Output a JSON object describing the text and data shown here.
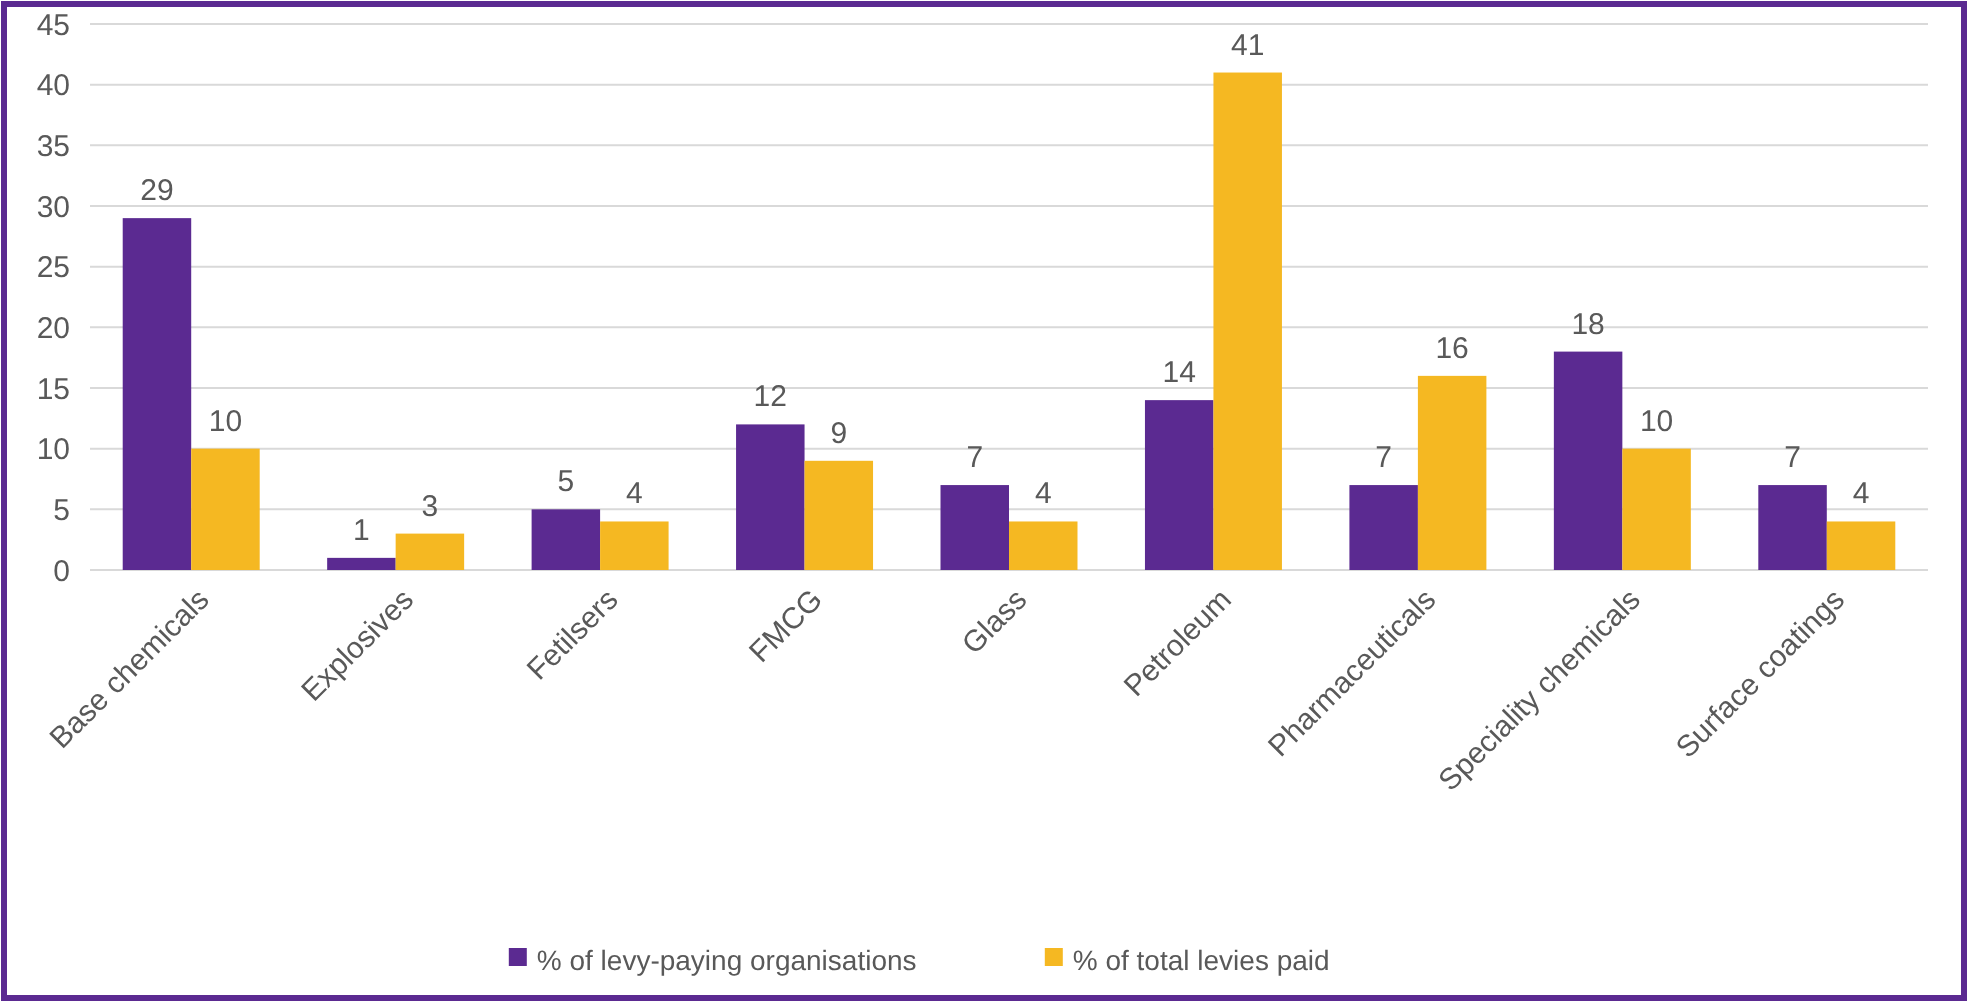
{
  "chart_data": {
    "type": "bar",
    "categories": [
      "Base chemicals",
      "Explosives",
      "Fetilsers",
      "FMCG",
      "Glass",
      "Petroleum",
      "Pharmaceuticals",
      "Speciality chemicals",
      "Surface coatings"
    ],
    "series": [
      {
        "name": "% of levy-paying organisations",
        "color": "#5b2a91",
        "values": [
          29,
          1,
          5,
          12,
          7,
          14,
          7,
          18,
          7
        ]
      },
      {
        "name": "% of total levies paid",
        "color": "#f5b822",
        "values": [
          10,
          3,
          4,
          9,
          4,
          41,
          16,
          10,
          4
        ]
      }
    ],
    "ylim": [
      0,
      45
    ],
    "yticks": [
      0,
      5,
      10,
      15,
      20,
      25,
      30,
      35,
      40,
      45
    ],
    "grid": "y",
    "legend": "bottom",
    "data_labels": true
  }
}
